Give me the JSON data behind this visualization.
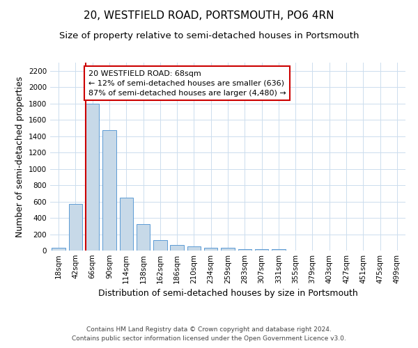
{
  "title": "20, WESTFIELD ROAD, PORTSMOUTH, PO6 4RN",
  "subtitle": "Size of property relative to semi-detached houses in Portsmouth",
  "xlabel": "Distribution of semi-detached houses by size in Portsmouth",
  "ylabel": "Number of semi-detached properties",
  "footnote1": "Contains HM Land Registry data © Crown copyright and database right 2024.",
  "footnote2": "Contains public sector information licensed under the Open Government Licence v3.0.",
  "categories": [
    "18sqm",
    "42sqm",
    "66sqm",
    "90sqm",
    "114sqm",
    "138sqm",
    "162sqm",
    "186sqm",
    "210sqm",
    "234sqm",
    "259sqm",
    "283sqm",
    "307sqm",
    "331sqm",
    "355sqm",
    "379sqm",
    "403sqm",
    "427sqm",
    "451sqm",
    "475sqm",
    "499sqm"
  ],
  "values": [
    30,
    570,
    1800,
    1470,
    650,
    325,
    130,
    65,
    55,
    35,
    30,
    20,
    20,
    15,
    0,
    0,
    0,
    0,
    0,
    0,
    0
  ],
  "bar_color": "#c7d9e8",
  "bar_edge_color": "#5b9bd5",
  "highlight_index": 2,
  "highlight_line_color": "#cc0000",
  "ylim": [
    0,
    2300
  ],
  "yticks": [
    0,
    200,
    400,
    600,
    800,
    1000,
    1200,
    1400,
    1600,
    1800,
    2000,
    2200
  ],
  "annotation_title": "20 WESTFIELD ROAD: 68sqm",
  "annotation_line1": "← 12% of semi-detached houses are smaller (636)",
  "annotation_line2": "87% of semi-detached houses are larger (4,480) →",
  "annotation_box_edge": "#cc0000",
  "grid_color": "#ccddee",
  "background_color": "#ffffff",
  "title_fontsize": 11,
  "subtitle_fontsize": 9.5,
  "axis_label_fontsize": 9,
  "tick_fontsize": 7.5,
  "annotation_fontsize": 8
}
